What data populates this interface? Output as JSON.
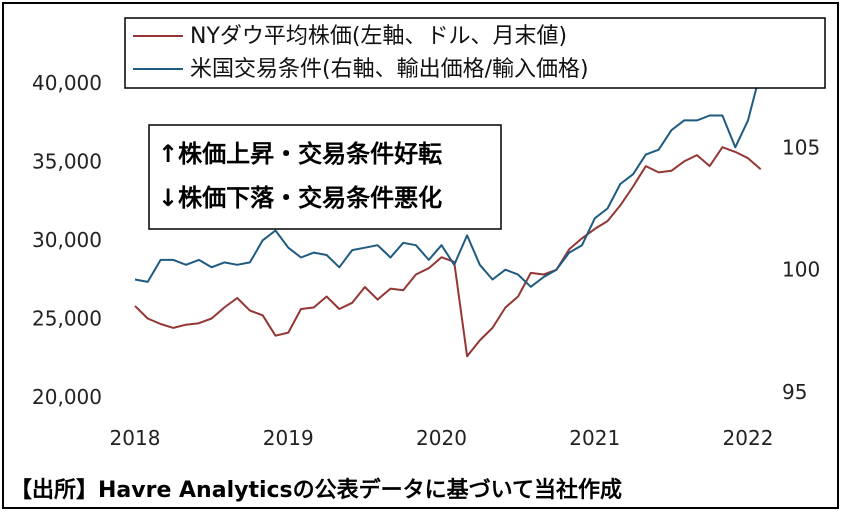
{
  "chart_data": {
    "type": "line",
    "x_labels": [
      "2018",
      "2019",
      "2020",
      "2021",
      "2022"
    ],
    "y_left_ticks": [
      "20,000",
      "25,000",
      "30,000",
      "35,000",
      "40,000"
    ],
    "y_left_range": [
      20000,
      44000
    ],
    "y_right_ticks": [
      "95",
      "100",
      "105"
    ],
    "y_right_range": [
      94.8,
      110.2
    ],
    "legend": {
      "dow_label": "NYダウ平均株価(左軸、ドル、月末値)",
      "tot_label": "米国交易条件(右軸、輸出価格/輸入価格)"
    },
    "annotation": {
      "line1": "↑株価上昇・交易条件好転",
      "line2": "↓株価下落・交易条件悪化"
    },
    "colors": {
      "dow": "#943634",
      "tot": "#1f5b80"
    },
    "series": [
      {
        "name": "NYダウ平均株価(左軸、ドル、月末値)",
        "axis": "left",
        "x": [
          2018.0,
          2018.083,
          2018.167,
          2018.25,
          2018.333,
          2018.417,
          2018.5,
          2018.583,
          2018.667,
          2018.75,
          2018.833,
          2018.917,
          2019.0,
          2019.083,
          2019.167,
          2019.25,
          2019.333,
          2019.417,
          2019.5,
          2019.583,
          2019.667,
          2019.75,
          2019.833,
          2019.917,
          2020.0,
          2020.083,
          2020.167,
          2020.25,
          2020.333,
          2020.417,
          2020.5,
          2020.583,
          2020.667,
          2020.75,
          2020.833,
          2020.917,
          2021.0,
          2021.083,
          2021.167,
          2021.25,
          2021.333,
          2021.417,
          2021.5,
          2021.583,
          2021.667,
          2021.75,
          2021.833,
          2021.917,
          2022.0,
          2022.083
        ],
        "values": [
          25800,
          25000,
          24650,
          24400,
          24600,
          24700,
          25000,
          25700,
          26300,
          25500,
          25200,
          23900,
          24100,
          25600,
          25700,
          26400,
          25600,
          26000,
          27000,
          26200,
          26900,
          26800,
          27800,
          28200,
          28900,
          28600,
          22600,
          23600,
          24400,
          25700,
          26400,
          27900,
          27800,
          28100,
          29400,
          30100,
          30700,
          31200,
          32200,
          33400,
          34700,
          34300,
          34400,
          35000,
          35400,
          34700,
          35900,
          35600,
          35200,
          34500
        ]
      },
      {
        "name": "米国交易条件(右軸、輸出価格/輸入価格)",
        "axis": "right",
        "x": [
          2018.0,
          2018.083,
          2018.167,
          2018.25,
          2018.333,
          2018.417,
          2018.5,
          2018.583,
          2018.667,
          2018.75,
          2018.833,
          2018.917,
          2019.0,
          2019.083,
          2019.167,
          2019.25,
          2019.333,
          2019.417,
          2019.5,
          2019.583,
          2019.667,
          2019.75,
          2019.833,
          2019.917,
          2020.0,
          2020.083,
          2020.167,
          2020.25,
          2020.333,
          2020.417,
          2020.5,
          2020.583,
          2020.667,
          2020.75,
          2020.833,
          2020.917,
          2021.0,
          2021.083,
          2021.167,
          2021.25,
          2021.333,
          2021.417,
          2021.5,
          2021.583,
          2021.667,
          2021.75,
          2021.833,
          2021.917,
          2022.0,
          2022.083
        ],
        "values": [
          99.6,
          99.5,
          100.4,
          100.4,
          100.2,
          100.4,
          100.1,
          100.3,
          100.2,
          100.3,
          101.2,
          101.6,
          100.9,
          100.5,
          100.7,
          100.6,
          100.1,
          100.8,
          100.9,
          101.0,
          100.5,
          101.1,
          101.0,
          100.4,
          101.0,
          100.2,
          101.4,
          100.2,
          99.6,
          100.0,
          99.8,
          99.3,
          99.7,
          100.0,
          100.7,
          101.0,
          102.1,
          102.5,
          103.5,
          103.9,
          104.7,
          104.9,
          105.7,
          106.1,
          106.1,
          106.3,
          106.3,
          105.0,
          106.1,
          108.1
        ]
      }
    ]
  },
  "source": "【出所】Havre Analyticsの公表データに基づいて当社作成"
}
